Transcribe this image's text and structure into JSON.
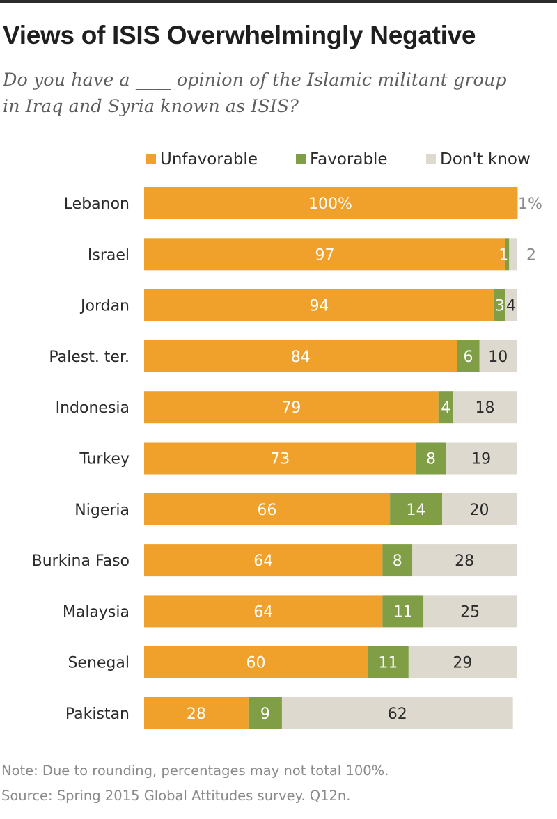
{
  "title": "Views of ISIS Overwhelmingly Negative",
  "subtitle_line1": "Do you have a ____ opinion of the Islamic militant group",
  "subtitle_line2": "in Iraq and Syria known as ISIS?",
  "note": "Note: Due to rounding, percentages may not total 100%.",
  "source": "Source: Spring 2015 Global Attitudes survey. Q12n.",
  "colors": {
    "unfavorable": "#f0a12c",
    "favorable": "#7f9e46",
    "dont_know": "#ddd9ce",
    "title": "#1f1f1f"
  },
  "chart_data": {
    "type": "bar",
    "orientation": "horizontal",
    "stacked": true,
    "xlim": [
      0,
      100
    ],
    "legend_position": "top",
    "categories": [
      "Lebanon",
      "Israel",
      "Jordan",
      "Palest. ter.",
      "Indonesia",
      "Turkey",
      "Nigeria",
      "Burkina Faso",
      "Malaysia",
      "Senegal",
      "Pakistan"
    ],
    "series": [
      {
        "name": "Unfavorable",
        "color": "#f0a12c",
        "values": [
          100,
          97,
          94,
          84,
          79,
          73,
          66,
          64,
          64,
          60,
          28
        ]
      },
      {
        "name": "Favorable",
        "color": "#7f9e46",
        "values": [
          0,
          1,
          3,
          6,
          4,
          8,
          14,
          8,
          11,
          11,
          9
        ]
      },
      {
        "name": "Don't know",
        "color": "#ddd9ce",
        "values": [
          1,
          2,
          4,
          10,
          18,
          19,
          20,
          28,
          25,
          29,
          62
        ]
      }
    ],
    "value_labels": [
      [
        "100%",
        "",
        "1%"
      ],
      [
        "97",
        "1",
        "2"
      ],
      [
        "94",
        "3",
        "4"
      ],
      [
        "84",
        "6",
        "10"
      ],
      [
        "79",
        "4",
        "18"
      ],
      [
        "73",
        "8",
        "19"
      ],
      [
        "66",
        "14",
        "20"
      ],
      [
        "64",
        "8",
        "28"
      ],
      [
        "64",
        "11",
        "25"
      ],
      [
        "60",
        "11",
        "29"
      ],
      [
        "28",
        "9",
        "62"
      ]
    ]
  }
}
